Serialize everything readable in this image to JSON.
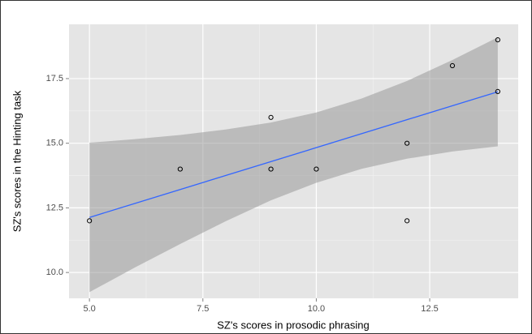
{
  "chart_data": {
    "type": "scatter",
    "x_label": "SZ's scores in prosodic phrasing",
    "y_label": "SZ's scores in the Hinting task",
    "x": [
      5,
      7,
      9,
      9,
      10,
      12,
      12,
      13,
      14,
      14
    ],
    "values": [
      12,
      14,
      16,
      14,
      14,
      15,
      12,
      18,
      19,
      17
    ],
    "point_color": "#000000",
    "fit": {
      "x": [
        5,
        14
      ],
      "values": [
        12.13,
        16.99
      ],
      "color": "#3366ff"
    },
    "band": {
      "x": [
        5,
        6,
        7,
        8,
        9,
        10,
        11,
        12,
        13,
        14
      ],
      "lower": [
        9.24,
        10.19,
        11.1,
        11.98,
        12.79,
        13.47,
        14.01,
        14.4,
        14.68,
        14.88
      ],
      "upper": [
        15.02,
        15.16,
        15.32,
        15.53,
        15.8,
        16.19,
        16.73,
        17.41,
        18.22,
        19.1
      ],
      "color": "#999999"
    },
    "xlim": [
      4.55,
      14.45
    ],
    "ylim": [
      9.0,
      19.6
    ],
    "xticks": [
      {
        "value": 5,
        "label": "5.0"
      },
      7.5,
      {
        "value": 10,
        "label": "10.0"
      },
      12.5
    ],
    "yticks": [
      {
        "value": 10,
        "label": "10.0"
      },
      12.5,
      {
        "value": 15,
        "label": "15.0"
      },
      17.5
    ],
    "grid": true
  }
}
